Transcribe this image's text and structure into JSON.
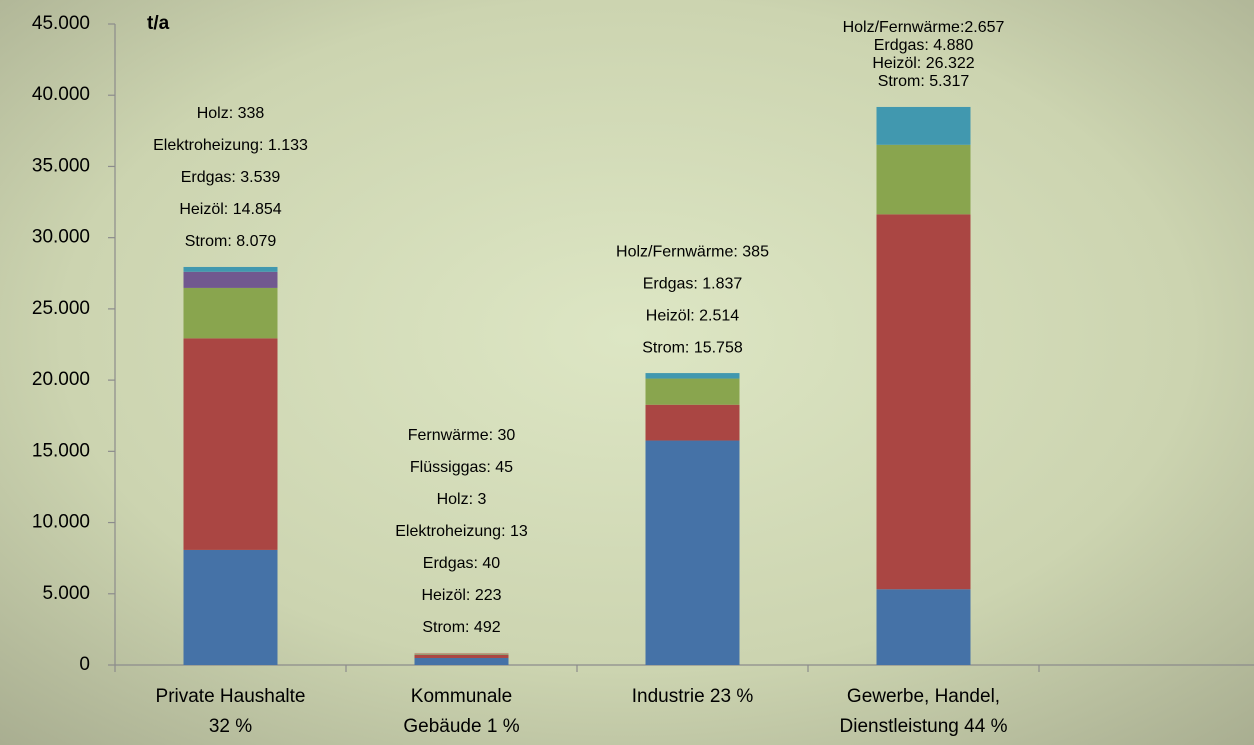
{
  "chart_data": {
    "type": "stacked_bar",
    "ylabel": "t/a",
    "ylim": [
      0,
      45000
    ],
    "yticks": [
      0,
      {
        "value": 5000,
        "label": "5.000"
      },
      {
        "value": 10000,
        "label": "10.000"
      },
      {
        "value": 15000,
        "label": "15.000"
      },
      {
        "value": 20000,
        "label": "20.000"
      },
      {
        "value": 25000,
        "label": "25.000"
      },
      {
        "value": 30000,
        "label": "30.000"
      },
      {
        "value": 35000,
        "label": "35.000"
      },
      {
        "value": 40000,
        "label": "40.000"
      },
      {
        "value": 45000,
        "label": "45.000"
      }
    ],
    "categories": [
      [
        "Private Haushalte",
        "32 %"
      ],
      [
        "Kommunale",
        "Gebäude 1 %"
      ],
      [
        "Industrie 23 %"
      ],
      [
        "Gewerbe, Handel,",
        "Dienstleistung 44 %"
      ]
    ],
    "stacks": [
      {
        "values": [
          8079,
          14854,
          3539,
          1133,
          338
        ],
        "value_labels": [
          "Strom: 8.079",
          "Heizöl: 14.854",
          "Erdgas: 3.539",
          "Elektroheizung: 1.133",
          "Holz: 338"
        ],
        "colors": [
          "#4572a7",
          "#aa4643",
          "#89a54e",
          "#71588f",
          "#4198af"
        ]
      },
      {
        "values": [
          492,
          223,
          40,
          13,
          3,
          45,
          30
        ],
        "value_labels": [
          "Strom: 492",
          "Heizöl: 223",
          "Erdgas: 40",
          "Elektroheizung: 13",
          "Holz: 3",
          "Flüssiggas: 45",
          "Fernwärme: 30"
        ],
        "colors": [
          "#4572a7",
          "#aa4643",
          "#89a54e",
          "#71588f",
          "#4198af",
          "#db843d",
          "#93a9cf"
        ]
      },
      {
        "values": [
          15758,
          2514,
          1837,
          385
        ],
        "value_labels": [
          "Strom: 15.758",
          "Heizöl: 2.514",
          "Erdgas: 1.837",
          "Holz/Fernwärme: 385"
        ],
        "colors": [
          "#4572a7",
          "#aa4643",
          "#89a54e",
          "#4198af"
        ]
      },
      {
        "values": [
          5317,
          26322,
          4880,
          2657
        ],
        "value_labels": [
          "Strom: 5.317",
          "Heizöl: 26.322",
          "Erdgas: 4.880",
          "Holz/Fernwärme:2.657"
        ],
        "colors": [
          "#4572a7",
          "#aa4643",
          "#89a54e",
          "#4198af"
        ]
      }
    ]
  }
}
